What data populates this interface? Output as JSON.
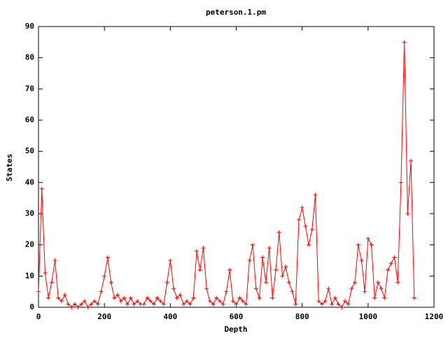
{
  "chart_data": {
    "type": "line",
    "title": "peterson.1.pm",
    "x_label": "Depth",
    "y_label": "States",
    "x": [
      0,
      10,
      20,
      30,
      40,
      50,
      60,
      70,
      80,
      90,
      100,
      110,
      120,
      130,
      140,
      150,
      160,
      170,
      180,
      190,
      200,
      210,
      220,
      230,
      240,
      250,
      260,
      270,
      280,
      290,
      300,
      310,
      320,
      330,
      340,
      350,
      360,
      370,
      380,
      390,
      400,
      410,
      420,
      430,
      440,
      450,
      460,
      470,
      480,
      490,
      500,
      510,
      520,
      530,
      540,
      550,
      560,
      570,
      580,
      590,
      600,
      610,
      620,
      630,
      640,
      650,
      660,
      670,
      680,
      690,
      700,
      710,
      720,
      730,
      740,
      750,
      760,
      770,
      780,
      790,
      800,
      810,
      820,
      830,
      840,
      850,
      860,
      870,
      880,
      890,
      900,
      910,
      920,
      930,
      940,
      950,
      960,
      970,
      980,
      990,
      1000,
      1010,
      1020,
      1030,
      1040,
      1050,
      1060,
      1070,
      1080,
      1090,
      1100,
      1110,
      1120,
      1130,
      1140
    ],
    "series": [
      {
        "name": "States",
        "color": "#ff0000",
        "values": [
          5,
          38,
          11,
          3,
          8,
          15,
          3,
          2,
          4,
          1,
          0,
          1,
          0,
          1,
          2,
          0,
          1,
          2,
          1,
          5,
          10,
          16,
          8,
          3,
          4,
          2,
          3,
          1,
          3,
          1,
          2,
          1,
          1,
          3,
          2,
          1,
          3,
          2,
          1,
          8,
          15,
          6,
          3,
          4,
          1,
          2,
          1,
          3,
          18,
          12,
          19,
          6,
          2,
          1,
          3,
          2,
          1,
          5,
          12,
          2,
          1,
          3,
          2,
          1,
          15,
          20,
          6,
          3,
          16,
          8,
          19,
          3,
          12,
          24,
          10,
          13,
          8,
          5,
          1,
          28,
          32,
          26,
          20,
          25,
          36,
          2,
          1,
          2,
          6,
          1,
          3,
          1,
          0,
          2,
          1,
          6,
          8,
          20,
          15,
          5,
          22,
          20,
          3,
          8,
          6,
          3,
          12,
          14,
          16,
          8,
          40,
          85,
          30,
          47,
          3
        ]
      }
    ],
    "xlim": [
      0,
      1200
    ],
    "ylim": [
      0,
      90
    ],
    "xticks": [
      0,
      200,
      400,
      600,
      800,
      1000,
      1200
    ],
    "yticks": [
      0,
      10,
      20,
      30,
      40,
      50,
      60,
      70,
      80,
      90
    ]
  }
}
